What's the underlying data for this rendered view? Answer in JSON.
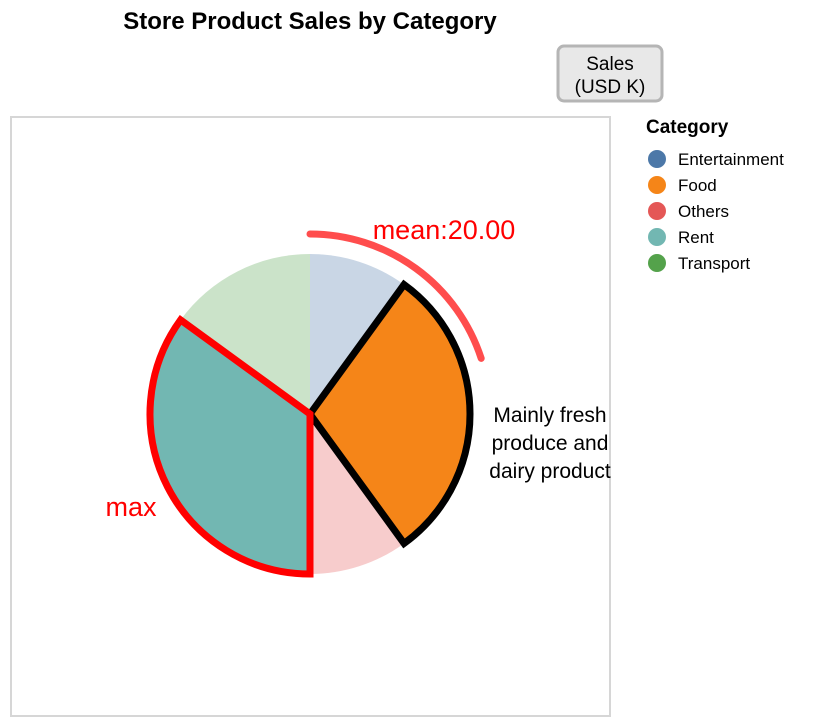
{
  "chart_data": {
    "type": "pie",
    "title": "Store Product Sales by Category",
    "measure_label": [
      "Sales",
      "(USD K)"
    ],
    "legend_title": "Category",
    "legend_position": "right",
    "categories": [
      "Entertainment",
      "Food",
      "Others",
      "Rent",
      "Transport"
    ],
    "values": [
      10,
      30,
      10,
      35,
      15
    ],
    "colors": {
      "Entertainment": "#4c78a8",
      "Food": "#f58518",
      "Others": "#e45756",
      "Rent": "#72b7b2",
      "Transport": "#54a24b"
    },
    "highlighted": [
      "Food",
      "Rent"
    ],
    "annotations": {
      "mean_label": "mean:20.00",
      "max_label": "max",
      "food_note": [
        "Mainly fresh",
        "produce and",
        "dairy product"
      ]
    }
  }
}
